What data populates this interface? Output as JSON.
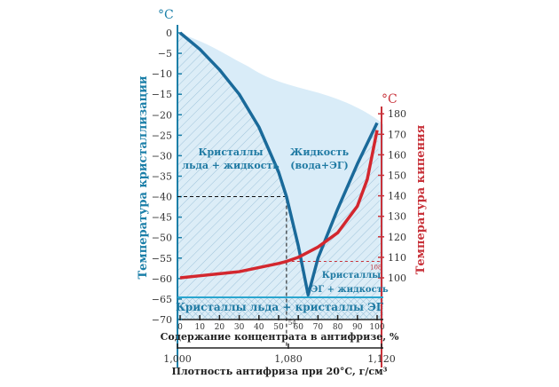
{
  "chart_data": {
    "type": "line",
    "title": "",
    "left_axis": {
      "label": "Температура кристаллизации",
      "unit": "°C",
      "range": [
        -70,
        0
      ],
      "ticks": [
        0,
        -5,
        -10,
        -15,
        -20,
        -25,
        -30,
        -35,
        -40,
        -45,
        -50,
        -55,
        -60,
        -65,
        -70
      ],
      "tick_labels": [
        "0",
        "−5",
        "−10",
        "−15",
        "−20",
        "−25",
        "−30",
        "−35",
        "−40",
        "−45",
        "−50",
        "−55",
        "−60",
        "−65",
        "−70"
      ]
    },
    "right_axis": {
      "label": "Температура кипения",
      "unit": "°C",
      "range": [
        100,
        180
      ],
      "ticks": [
        180,
        170,
        160,
        150,
        140,
        130,
        120,
        110,
        100
      ]
    },
    "x_axis": {
      "label": "Содержание концентрата в антифризе, %",
      "range": [
        0,
        100
      ],
      "ticks": [
        0,
        10,
        20,
        30,
        40,
        50,
        60,
        70,
        80,
        90,
        100
      ]
    },
    "x2_axis": {
      "label": "Плотность антифриза при 20°C, г/см³",
      "ticks": [
        "1,000",
        "1,080",
        "1,120"
      ],
      "tick_pct": [
        0,
        54,
        100
      ]
    },
    "series": [
      {
        "name": "Температура кристаллизации",
        "color": "#1a6a9a",
        "x": [
          0,
          10,
          20,
          30,
          40,
          50,
          54,
          60,
          65,
          70,
          80,
          90,
          100
        ],
        "y": [
          0,
          -4,
          -9,
          -15,
          -23,
          -34,
          -40,
          -52,
          -64,
          -55,
          -43,
          -32,
          -22
        ]
      },
      {
        "name": "Температура кипения",
        "color": "#d3272e",
        "x": [
          0,
          10,
          20,
          30,
          40,
          50,
          54,
          60,
          70,
          80,
          90,
          95,
          100
        ],
        "y": [
          100,
          101,
          102,
          103,
          105,
          107,
          108,
          110,
          115,
          122,
          135,
          148,
          172
        ]
      }
    ],
    "regions": {
      "ice_liquid": [
        "Кристаллы",
        "льда + жидкость"
      ],
      "liquid": [
        "Жидкость",
        "(вода+ЭГ)"
      ],
      "eg_liquid": [
        "Кристаллы",
        "ЭГ + жидкость"
      ],
      "solid": "Кристаллы льда + кристаллы ЭГ"
    },
    "annotations": {
      "x_marker": "54",
      "boil_marker": "108",
      "freeze_marker": -40,
      "eutectic": -65
    }
  }
}
